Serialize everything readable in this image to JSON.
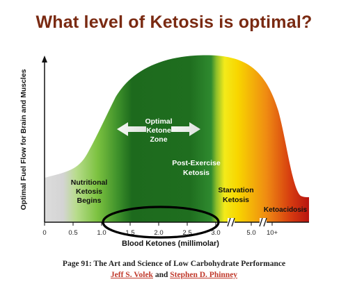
{
  "chart_data": {
    "type": "area",
    "title": "What level of Ketosis is optimal?",
    "xlabel": "Blood Ketones (millimolar)",
    "ylabel": "Optimal Fuel Flow for Brain and Muscles",
    "x_ticks": [
      "0",
      "0.5",
      "1.0",
      "1.5",
      "2.0",
      "2.5",
      "3.0",
      "5.0",
      "10+"
    ],
    "axis_breaks": true,
    "grid": false,
    "zones": [
      {
        "label": "Nutritional Ketosis Begins",
        "color": "#8fcf4a"
      },
      {
        "label": "Optimal Ketone Zone",
        "color": "#1f6e1f"
      },
      {
        "label": "Post-Exercise Ketosis",
        "color": "#2e8b2e"
      },
      {
        "label": "Starvation Ketosis",
        "color": "#f5d400"
      },
      {
        "label": "Ketoacidosis",
        "color": "#c81a0f"
      }
    ],
    "optimal_zone": {
      "label": "Optimal Ketone Zone",
      "x_start": "1.0",
      "x_end": "3.0"
    }
  },
  "labels": {
    "nutritional": [
      "Nutritional",
      "Ketosis",
      "Begins"
    ],
    "optimal": [
      "Optimal",
      "Ketone",
      "Zone"
    ],
    "postexercise": [
      "Post-Exercise",
      "Ketosis"
    ],
    "starvation": [
      "Starvation",
      "Ketosis"
    ],
    "ketoacidosis": [
      "Ketoacidosis"
    ]
  },
  "caption": "Page 91: The Art and Science of Low Carbohydrate Performance",
  "authors": {
    "first": "Jeff S. Volek",
    "connector": "and",
    "second": "Stephen D. Phinney"
  }
}
